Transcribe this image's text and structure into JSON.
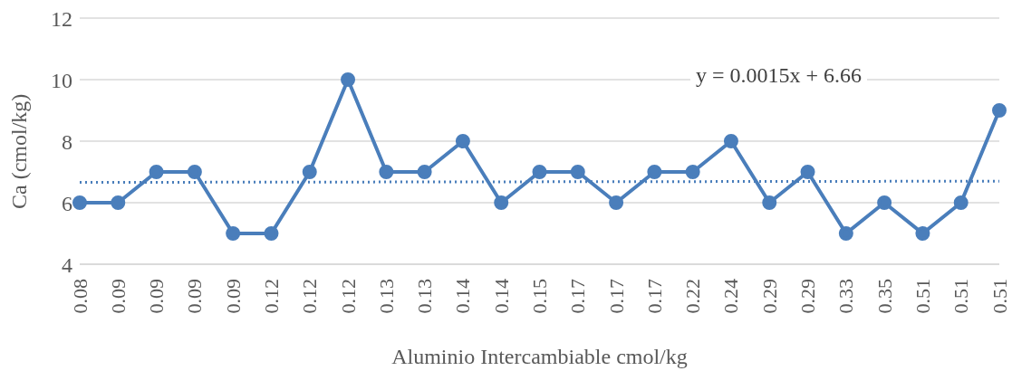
{
  "chart_data": {
    "type": "line",
    "xlabel": "Aluminio Intercambiable cmol/kg",
    "ylabel": "Ca (cmol/kg)",
    "categories": [
      "0.08",
      "0.09",
      "0.09",
      "0.09",
      "0.09",
      "0.12",
      "0.12",
      "0.12",
      "0.13",
      "0.13",
      "0.14",
      "0.14",
      "0.15",
      "0.17",
      "0.17",
      "0.17",
      "0.22",
      "0.24",
      "0.29",
      "0.29",
      "0.33",
      "0.35",
      "0.51",
      "0.51",
      "0.51"
    ],
    "series": [
      {
        "color": "#4a7ebb",
        "marker": "circle",
        "line_style": "solid",
        "values": [
          6,
          6,
          7,
          7,
          5,
          5,
          7,
          10,
          7,
          7,
          8,
          6,
          7,
          7,
          6,
          7,
          7,
          8,
          6,
          7,
          5,
          6,
          5,
          6,
          9
        ]
      },
      {
        "color": "#4a7ebb",
        "marker": "none",
        "line_style": "dotted",
        "values": [
          6.66,
          null,
          null,
          null,
          null,
          null,
          null,
          null,
          null,
          null,
          null,
          null,
          null,
          null,
          null,
          null,
          null,
          null,
          null,
          null,
          null,
          null,
          null,
          null,
          6.7
        ]
      }
    ],
    "ylim": [
      4,
      12
    ],
    "yticks": [
      4,
      6,
      8,
      10,
      12
    ],
    "grid": "y",
    "annotations": [
      "y = 0.0015x + 6.66"
    ]
  }
}
